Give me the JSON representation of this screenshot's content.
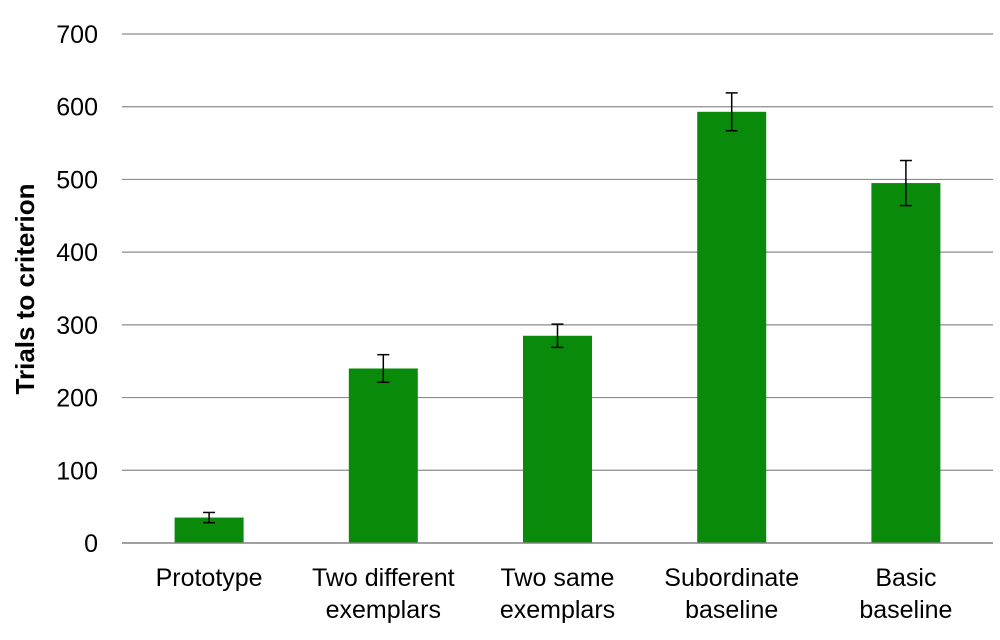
{
  "chart_data": {
    "type": "bar",
    "title": "",
    "xlabel": "",
    "ylabel": "Trials to criterion",
    "ylim": [
      0,
      700
    ],
    "yticks": [
      0,
      100,
      200,
      300,
      400,
      500,
      600,
      700
    ],
    "grid": true,
    "legend": "none",
    "bar_color": "#0a8a0a",
    "categories": [
      [
        "Prototype"
      ],
      [
        "Two different",
        "exemplars"
      ],
      [
        "Two same",
        "exemplars"
      ],
      [
        "Subordinate",
        "baseline"
      ],
      [
        "Basic",
        "baseline"
      ]
    ],
    "values": [
      35,
      240,
      285,
      593,
      495
    ],
    "error": [
      7,
      19,
      16,
      26,
      31
    ]
  }
}
